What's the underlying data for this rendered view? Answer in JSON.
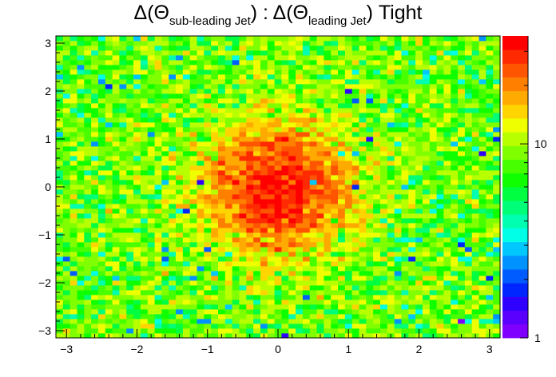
{
  "title": {
    "delta1": "Δ(Θ",
    "sub1": "sub-leading Jet",
    "mid": ") : Δ(Θ",
    "sub2": "leading Jet",
    "tail": ") Tight"
  },
  "chart_data": {
    "type": "heatmap",
    "xlim": [
      -3.15,
      3.15
    ],
    "ylim": [
      -3.15,
      3.15
    ],
    "bins_x": 63,
    "bins_y": 63,
    "xticks": [
      -3,
      -2,
      -1,
      0,
      1,
      2,
      3
    ],
    "yticks": [
      -3,
      -2,
      -1,
      0,
      1,
      2,
      3
    ],
    "colorbar": {
      "scale": "log",
      "range": [
        1,
        36
      ],
      "tick_labels": [
        "1",
        "10"
      ],
      "tick_values": [
        1,
        10
      ]
    },
    "distribution": {
      "shape": "2D gaussian peak on flat background",
      "center": [
        0.0,
        0.0
      ],
      "sigma": [
        0.65,
        0.85
      ],
      "peak_counts": 32,
      "background_counts": 8.5
    },
    "grid": false,
    "legend": "none",
    "palette": [
      "#8000ff",
      "#5a00ff",
      "#3000ff",
      "#0026ff",
      "#005cff",
      "#0092ff",
      "#00c8ff",
      "#00ffe6",
      "#00ffb0",
      "#00ff78",
      "#00ff40",
      "#10ff00",
      "#48ff00",
      "#80ff00",
      "#b8ff00",
      "#f0ff00",
      "#ffd400",
      "#ffaa00",
      "#ff7f00",
      "#ff5400",
      "#ff2a00",
      "#ff0000"
    ]
  }
}
